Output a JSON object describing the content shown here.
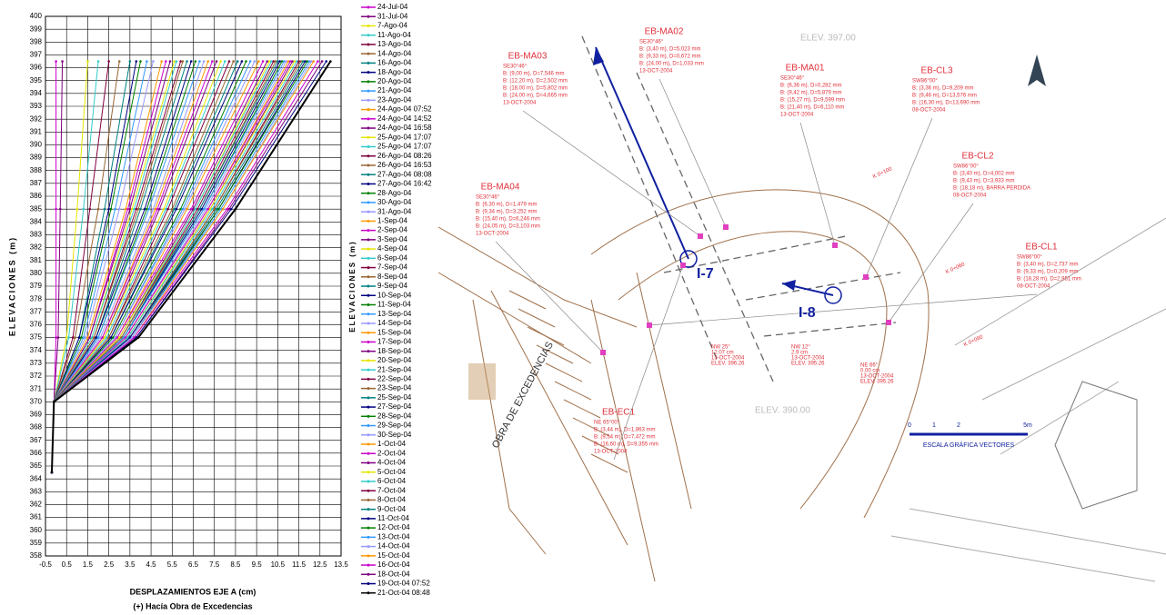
{
  "chart_data": {
    "type": "line",
    "y_axis_label": "ELEVACIONES (m)",
    "legend_axis_label": "ELEVACIONES (m)",
    "x_axis_label": "DESPLAZAMIENTOS EJE A (cm)",
    "subtitle": "(+) Hacía Obra de Excedencias",
    "elevations": [
      364.5,
      370,
      375,
      385,
      396.5
    ],
    "xlim": [
      -0.5,
      13.5
    ],
    "xticks": [
      -0.5,
      0.5,
      1.5,
      2.5,
      3.5,
      4.5,
      5.5,
      6.5,
      7.5,
      8.5,
      9.5,
      10.5,
      11.5,
      12.5,
      13.5
    ],
    "ylim": [
      358,
      400
    ],
    "yticks": [
      358,
      359,
      360,
      361,
      362,
      363,
      364,
      365,
      366,
      367,
      368,
      369,
      370,
      371,
      372,
      373,
      374,
      375,
      376,
      377,
      378,
      379,
      380,
      381,
      382,
      383,
      384,
      385,
      386,
      387,
      388,
      389,
      390,
      391,
      392,
      393,
      394,
      395,
      396,
      397,
      398,
      399,
      400
    ],
    "grid": true,
    "series": [
      {
        "name": "24-Jul-04",
        "color": "#cc00cc",
        "values": [
          -0.2,
          -0.1,
          0,
          0,
          0
        ]
      },
      {
        "name": "31-Jul-04",
        "color": "#800080",
        "values": [
          -0.2,
          -0.1,
          0.1,
          0.2,
          0.3
        ]
      },
      {
        "name": "7-Ago-04",
        "color": "#e6e600",
        "values": [
          -0.2,
          -0.1,
          0.5,
          1.0,
          1.5
        ]
      },
      {
        "name": "11-Ago-04",
        "color": "#33cccc",
        "values": [
          -0.2,
          -0.1,
          0.6,
          1.3,
          2
        ]
      },
      {
        "name": "13-Ago-04",
        "color": "#800040",
        "values": [
          -0.2,
          -0.1,
          0.8,
          1.6,
          2.5
        ]
      },
      {
        "name": "14-Ago-04",
        "color": "#996633",
        "values": [
          -0.2,
          -0.1,
          0.9,
          2.0,
          3
        ]
      },
      {
        "name": "16-Ago-04",
        "color": "#008080",
        "values": [
          -0.2,
          -0.1,
          1.1,
          2.3,
          3.5
        ]
      },
      {
        "name": "18-Ago-04",
        "color": "#000080",
        "values": [
          -0.2,
          -0.1,
          1.1,
          2.5,
          3.8
        ]
      },
      {
        "name": "20-Ago-04",
        "color": "#008000",
        "values": [
          -0.2,
          -0.1,
          1.2,
          2.6,
          4
        ]
      },
      {
        "name": "21-Ago-04",
        "color": "#3399ff",
        "values": [
          -0.2,
          -0.1,
          1.3,
          2.8,
          4.3
        ]
      },
      {
        "name": "23-Ago-04",
        "color": "#9999ff",
        "values": [
          -0.2,
          -0.1,
          1.4,
          3.0,
          4.6
        ]
      },
      {
        "name": "24-Ago-04 07:52",
        "color": "#ff9900",
        "values": [
          -0.2,
          -0.1,
          1.5,
          3.3,
          5
        ]
      },
      {
        "name": "24-Ago-04 14:52",
        "color": "#cc00cc",
        "values": [
          -0.2,
          -0.1,
          1.6,
          3.4,
          5.2
        ]
      },
      {
        "name": "24-Ago-04 16:58",
        "color": "#800080",
        "values": [
          -0.2,
          -0.1,
          1.6,
          3.5,
          5.4
        ]
      },
      {
        "name": "25-Ago-04 17:07",
        "color": "#e6e600",
        "values": [
          -0.2,
          -0.1,
          1.7,
          3.6,
          5.6
        ]
      },
      {
        "name": "25-Ago-04 17:07",
        "color": "#33cccc",
        "values": [
          -0.2,
          -0.1,
          1.7,
          3.7,
          5.7
        ]
      },
      {
        "name": "26-Ago-04 08:26",
        "color": "#800040",
        "values": [
          -0.2,
          -0.1,
          1.8,
          3.8,
          5.9
        ]
      },
      {
        "name": "26-Ago-04 16:53",
        "color": "#996633",
        "values": [
          -0.2,
          -0.1,
          1.8,
          3.9,
          6
        ]
      },
      {
        "name": "27-Ago-04 08:08",
        "color": "#008080",
        "values": [
          -0.2,
          -0.1,
          1.9,
          4.0,
          6.2
        ]
      },
      {
        "name": "27-Ago-04 16:42",
        "color": "#000080",
        "values": [
          -0.2,
          -0.1,
          1.9,
          4.2,
          6.4
        ]
      },
      {
        "name": "28-Ago-04",
        "color": "#008000",
        "values": [
          -0.2,
          -0.1,
          2.0,
          4.3,
          6.6
        ]
      },
      {
        "name": "30-Ago-04",
        "color": "#3399ff",
        "values": [
          -0.2,
          -0.1,
          2.0,
          4.4,
          6.8
        ]
      },
      {
        "name": "31-Ago-04",
        "color": "#9999ff",
        "values": [
          -0.2,
          -0.1,
          2.1,
          4.6,
          7
        ]
      },
      {
        "name": "1-Sep-04",
        "color": "#ff9900",
        "values": [
          -0.2,
          -0.1,
          2.2,
          4.7,
          7.2
        ]
      },
      {
        "name": "2-Sep-04",
        "color": "#cc00cc",
        "values": [
          -0.2,
          -0.1,
          2.2,
          4.8,
          7.4
        ]
      },
      {
        "name": "3-Sep-04",
        "color": "#800080",
        "values": [
          -0.2,
          -0.1,
          2.3,
          4.9,
          7.6
        ]
      },
      {
        "name": "4-Sep-04",
        "color": "#e6e600",
        "values": [
          -0.2,
          -0.1,
          2.3,
          5.1,
          7.8
        ]
      },
      {
        "name": "6-Sep-04",
        "color": "#33cccc",
        "values": [
          -0.2,
          -0.1,
          2.4,
          5.2,
          8
        ]
      },
      {
        "name": "7-Sep-04",
        "color": "#800040",
        "values": [
          -0.2,
          -0.1,
          2.5,
          5.3,
          8.2
        ]
      },
      {
        "name": "8-Sep-04",
        "color": "#996633",
        "values": [
          -0.2,
          -0.1,
          2.5,
          5.5,
          8.4
        ]
      },
      {
        "name": "9-Sep-04",
        "color": "#008080",
        "values": [
          -0.2,
          -0.1,
          2.6,
          5.6,
          8.6
        ]
      },
      {
        "name": "10-Sep-04",
        "color": "#000080",
        "values": [
          -0.2,
          -0.1,
          2.6,
          5.7,
          8.8
        ]
      },
      {
        "name": "11-Sep-04",
        "color": "#008000",
        "values": [
          -0.2,
          -0.1,
          2.7,
          5.9,
          9
        ]
      },
      {
        "name": "13-Sep-04",
        "color": "#3399ff",
        "values": [
          -0.2,
          -0.1,
          2.8,
          6.0,
          9.2
        ]
      },
      {
        "name": "14-Sep-04",
        "color": "#9999ff",
        "values": [
          -0.2,
          -0.1,
          2.8,
          6.1,
          9.4
        ]
      },
      {
        "name": "15-Sep-04",
        "color": "#ff9900",
        "values": [
          -0.2,
          -0.1,
          2.9,
          6.2,
          9.6
        ]
      },
      {
        "name": "17-Sep-04",
        "color": "#cc00cc",
        "values": [
          -0.2,
          -0.1,
          2.9,
          6.4,
          9.8
        ]
      },
      {
        "name": "18-Sep-04",
        "color": "#800080",
        "values": [
          -0.2,
          -0.1,
          3.0,
          6.5,
          10
        ]
      },
      {
        "name": "20-Sep-04",
        "color": "#e6e600",
        "values": [
          -0.2,
          -0.1,
          3.0,
          6.6,
          10.1
        ]
      },
      {
        "name": "21-Sep-04",
        "color": "#33cccc",
        "values": [
          -0.2,
          -0.1,
          3.1,
          6.6,
          10.2
        ]
      },
      {
        "name": "22-Sep-04",
        "color": "#800040",
        "values": [
          -0.2,
          -0.1,
          3.1,
          6.7,
          10.3
        ]
      },
      {
        "name": "23-Sep-04",
        "color": "#996633",
        "values": [
          -0.2,
          -0.1,
          3.1,
          6.8,
          10.4
        ]
      },
      {
        "name": "25-Sep-04",
        "color": "#008080",
        "values": [
          -0.2,
          -0.1,
          3.2,
          6.8,
          10.5
        ]
      },
      {
        "name": "27-Sep-04",
        "color": "#000080",
        "values": [
          -0.2,
          -0.1,
          3.2,
          6.9,
          10.6
        ]
      },
      {
        "name": "28-Sep-04",
        "color": "#008000",
        "values": [
          -0.2,
          -0.1,
          3.2,
          7.0,
          10.7
        ]
      },
      {
        "name": "29-Sep-04",
        "color": "#3399ff",
        "values": [
          -0.2,
          -0.1,
          3.2,
          7.0,
          10.8
        ]
      },
      {
        "name": "30-Sep-04",
        "color": "#9999ff",
        "values": [
          -0.2,
          -0.1,
          3.3,
          7.1,
          10.9
        ]
      },
      {
        "name": "1-Oct-04",
        "color": "#ff9900",
        "values": [
          -0.2,
          -0.1,
          3.3,
          7.2,
          11
        ]
      },
      {
        "name": "2-Oct-04",
        "color": "#cc00cc",
        "values": [
          -0.2,
          -0.1,
          3.3,
          7.2,
          11.1
        ]
      },
      {
        "name": "4-Oct-04",
        "color": "#800080",
        "values": [
          -0.2,
          -0.1,
          3.4,
          7.3,
          11.2
        ]
      },
      {
        "name": "5-Oct-04",
        "color": "#e6e600",
        "values": [
          -0.2,
          -0.1,
          3.4,
          7.3,
          11.3
        ]
      },
      {
        "name": "6-Oct-04",
        "color": "#33cccc",
        "values": [
          -0.2,
          -0.1,
          3.4,
          7.4,
          11.4
        ]
      },
      {
        "name": "7-Oct-04",
        "color": "#800040",
        "values": [
          -0.2,
          -0.1,
          3.5,
          7.5,
          11.5
        ]
      },
      {
        "name": "8-Oct-04",
        "color": "#996633",
        "values": [
          -0.2,
          -0.1,
          3.5,
          7.5,
          11.6
        ]
      },
      {
        "name": "9-Oct-04",
        "color": "#008080",
        "values": [
          -0.2,
          -0.1,
          3.5,
          7.6,
          11.7
        ]
      },
      {
        "name": "11-Oct-04",
        "color": "#000080",
        "values": [
          -0.2,
          -0.1,
          3.5,
          7.7,
          11.8
        ]
      },
      {
        "name": "12-Oct-04",
        "color": "#008000",
        "values": [
          -0.2,
          -0.1,
          3.6,
          7.7,
          11.9
        ]
      },
      {
        "name": "13-Oct-04",
        "color": "#3399ff",
        "values": [
          -0.2,
          -0.1,
          3.6,
          7.8,
          12
        ]
      },
      {
        "name": "14-Oct-04",
        "color": "#9999ff",
        "values": [
          -0.2,
          -0.1,
          3.6,
          7.9,
          12.1
        ]
      },
      {
        "name": "15-Oct-04",
        "color": "#ff9900",
        "values": [
          -0.2,
          -0.1,
          3.7,
          7.9,
          12.2
        ]
      },
      {
        "name": "16-Oct-04",
        "color": "#cc00cc",
        "values": [
          -0.2,
          -0.1,
          3.7,
          8.1,
          12.4
        ]
      },
      {
        "name": "18-Oct-04",
        "color": "#800080",
        "values": [
          -0.2,
          -0.1,
          3.8,
          8.2,
          12.6
        ]
      },
      {
        "name": "19-Oct-04 07:52",
        "color": "#000080",
        "values": [
          -0.2,
          -0.1,
          3.8,
          8.3,
          12.8
        ]
      },
      {
        "name": "21-Oct-04 08:48",
        "color": "#000000",
        "values": [
          -0.2,
          -0.1,
          3.9,
          8.5,
          13
        ]
      }
    ]
  },
  "plan": {
    "elevation_labels": [
      "ELEV. 397.00",
      "ELEV. 390.00"
    ],
    "inclinometers": [
      "I-7",
      "I-8"
    ],
    "structure_label": "OBRA DE EXCEDENCIAS",
    "scale": {
      "title": "ESCALA GRÁFICA VECTORES",
      "ticks": [
        "0",
        "1",
        "2",
        "5m"
      ]
    },
    "chainages": [
      "K 0+060",
      "K 0+080",
      "K 0+100"
    ],
    "stations": [
      {
        "name": "EB-MA03",
        "lines": [
          "SE30°46°",
          "B: (9,00 m), D=7,546 mm",
          "B: (12,20 m), D=2,502 mm",
          "B: (18,00 m), D=5,802 mm",
          "B: (24,00 m), D=4,665 mm",
          "13-OCT-2004"
        ]
      },
      {
        "name": "EB-MA02",
        "lines": [
          "SE30°46°",
          "B: (3,40 m), D=5,023 mm",
          "B: (9,33 m), D=0,672 mm",
          "B: (24,00 m), D=1,033 mm",
          "13-OCT-2004"
        ]
      },
      {
        "name": "EB-MA01",
        "lines": [
          "SE30°46°",
          "B: (6,36 m), D=0,282 mm",
          "B: (9,42 m), D=5,879 mm",
          "B: (15,27 m), D=9,599 mm",
          "B: (21,40 m), D=6,110 mm",
          "13-OCT-2004"
        ]
      },
      {
        "name": "EB-CL3",
        "lines": [
          "SW86°00°",
          "B: (3,36 m), D=9,209 mm",
          "B: (9,46 m), D=13,576 mm",
          "B: (16,30 m), D=13,690 mm",
          "08-OCT-2004"
        ]
      },
      {
        "name": "EB-CL2",
        "lines": [
          "SW86°00°",
          "B: (3,40 m), D=4,002 mm",
          "B: (9,43 m), D=3,933 mm",
          "B: (18,18 m), BARRA PERDIDA",
          "08-OCT-2004"
        ]
      },
      {
        "name": "EB-CL1",
        "lines": [
          "SW86°00°",
          "B: (3,40 m), D=2,737 mm",
          "B: (9,33 m), D=0,209 mm",
          "B: (18,28 m), D=2,951 mm",
          "08-OCT-2004"
        ]
      },
      {
        "name": "EB-MA04",
        "lines": [
          "SE30°46°",
          "B: (6,30 m), D=1,479 mm",
          "B: (9,34 m), D=3,252 mm",
          "B: (15,40 m), D=6,246 mm",
          "B: (24,05 m), D=3,103 mm",
          "13-OCT-2004"
        ]
      },
      {
        "name": "EB-EC1",
        "lines": [
          "NE 65°00°",
          "B: (3,44 m), D=1,863 mm",
          "B: (9,54 m), D=7,472 mm",
          "B: (16,60 m), D=9,355 mm",
          "13-OCT-2004"
        ]
      }
    ],
    "inclinometer_notes": [
      [
        "NW 25°",
        "12.07 cm",
        "13-OCT-2004",
        "ELEV. 396.26"
      ],
      [
        "NW 12°",
        "2.9 cm",
        "13-OCT-2004",
        "ELEV. 395.26"
      ],
      [
        "NE 66°",
        "0.00 cm",
        "13-OCT-2004",
        "ELEV. 395.26"
      ]
    ]
  }
}
